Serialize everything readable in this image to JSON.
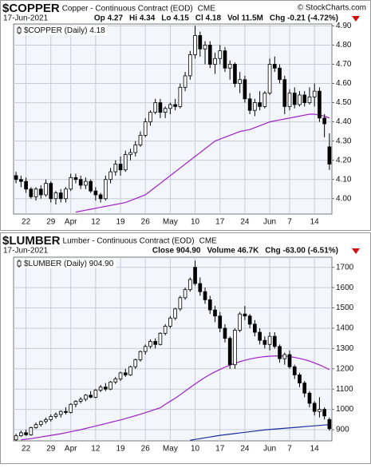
{
  "chart_data": [
    {
      "type": "candlestick",
      "title": "$COPPER",
      "subtitle": "Copper - Continuous Contract (EOD)",
      "exchange": "CME",
      "source": "© StockCharts.com",
      "date": "17-Jun-2021",
      "stats": [
        "Op 4.27",
        "Hi 4.34",
        "Lo 4.15",
        "Cl 4.18",
        "Vol 11.5M",
        "Chg -0.21 (-4.72%)"
      ],
      "legend_label": "$COPPER (Daily) 4.18",
      "categories": [
        null,
        null,
        "22",
        null,
        null,
        null,
        null,
        "29",
        null,
        null,
        null,
        "Apr",
        null,
        null,
        null,
        null,
        "12",
        null,
        null,
        null,
        null,
        "19",
        null,
        null,
        null,
        null,
        "26",
        null,
        null,
        null,
        null,
        "May",
        null,
        null,
        null,
        null,
        "10",
        null,
        null,
        null,
        null,
        "17",
        null,
        null,
        null,
        null,
        "24",
        null,
        null,
        null,
        null,
        "Jun",
        null,
        null,
        null,
        "7",
        null,
        null,
        null,
        null,
        "14",
        null,
        null,
        null
      ],
      "open": [
        4.12,
        4.1,
        4.09,
        4.05,
        4.01,
        4.05,
        4.02,
        4.08,
        4.0,
        4.03,
        4.0,
        4.05,
        4.11,
        4.1,
        4.07,
        4.09,
        4.04,
        4.02,
        4.0,
        4.1,
        4.14,
        4.18,
        4.15,
        4.23,
        4.24,
        4.28,
        4.33,
        4.4,
        4.45,
        4.5,
        4.45,
        4.47,
        4.49,
        4.48,
        4.58,
        4.64,
        4.75,
        4.85,
        4.78,
        4.8,
        4.7,
        4.73,
        4.77,
        4.68,
        4.7,
        4.6,
        4.62,
        4.52,
        4.46,
        4.5,
        4.48,
        4.55,
        4.7,
        4.68,
        4.62,
        4.48,
        4.55,
        4.49,
        4.54,
        4.5,
        4.53,
        4.56,
        4.42,
        4.27
      ],
      "high": [
        4.14,
        4.12,
        4.11,
        4.06,
        4.06,
        4.07,
        4.1,
        4.09,
        4.04,
        4.05,
        4.06,
        4.13,
        4.13,
        4.12,
        4.11,
        4.1,
        4.06,
        4.03,
        4.12,
        4.16,
        4.2,
        4.22,
        4.25,
        4.26,
        4.3,
        4.35,
        4.42,
        4.46,
        4.52,
        4.52,
        4.48,
        4.5,
        4.52,
        4.6,
        4.66,
        4.77,
        4.9,
        4.87,
        4.82,
        4.82,
        4.76,
        4.8,
        4.79,
        4.72,
        4.71,
        4.66,
        4.64,
        4.55,
        4.52,
        4.56,
        4.56,
        4.73,
        4.74,
        4.7,
        4.64,
        4.57,
        4.58,
        4.56,
        4.56,
        4.58,
        4.6,
        4.58,
        4.44,
        4.34
      ],
      "low": [
        4.08,
        4.06,
        4.03,
        4.0,
        3.99,
        4.0,
        4.01,
        3.98,
        3.97,
        3.98,
        3.98,
        4.04,
        4.08,
        4.05,
        4.05,
        4.03,
        3.99,
        3.98,
        3.99,
        4.08,
        4.12,
        4.12,
        4.14,
        4.2,
        4.22,
        4.27,
        4.32,
        4.38,
        4.44,
        4.42,
        4.42,
        4.44,
        4.46,
        4.47,
        4.56,
        4.62,
        4.73,
        4.74,
        4.7,
        4.68,
        4.65,
        4.7,
        4.66,
        4.62,
        4.58,
        4.55,
        4.5,
        4.44,
        4.43,
        4.46,
        4.47,
        4.54,
        4.66,
        4.6,
        4.44,
        4.46,
        4.47,
        4.48,
        4.48,
        4.49,
        4.48,
        4.4,
        4.32,
        4.15
      ],
      "close": [
        4.1,
        4.09,
        4.05,
        4.01,
        4.05,
        4.02,
        4.08,
        4.0,
        4.03,
        4.0,
        4.05,
        4.11,
        4.1,
        4.07,
        4.09,
        4.04,
        4.02,
        4.0,
        4.1,
        4.14,
        4.18,
        4.15,
        4.23,
        4.24,
        4.28,
        4.33,
        4.4,
        4.45,
        4.5,
        4.45,
        4.47,
        4.49,
        4.48,
        4.58,
        4.64,
        4.75,
        4.85,
        4.78,
        4.8,
        4.7,
        4.73,
        4.77,
        4.68,
        4.7,
        4.6,
        4.62,
        4.52,
        4.46,
        4.5,
        4.48,
        4.55,
        4.7,
        4.68,
        4.62,
        4.48,
        4.55,
        4.49,
        4.54,
        4.5,
        4.53,
        4.56,
        4.42,
        4.39,
        4.18
      ],
      "moving_averages": [
        {
          "color": "#a020c8",
          "values": [
            null,
            null,
            null,
            null,
            null,
            null,
            null,
            null,
            null,
            null,
            null,
            null,
            3.93,
            3.935,
            3.94,
            3.945,
            3.95,
            3.955,
            3.96,
            3.965,
            3.97,
            3.975,
            3.98,
            3.99,
            4.0,
            4.01,
            4.02,
            4.04,
            4.06,
            4.08,
            4.1,
            4.12,
            4.14,
            4.16,
            4.18,
            4.2,
            4.22,
            4.24,
            4.26,
            4.28,
            4.3,
            4.31,
            4.32,
            4.33,
            4.34,
            4.35,
            4.355,
            4.36,
            4.37,
            4.38,
            4.39,
            4.4,
            4.405,
            4.41,
            4.415,
            4.42,
            4.425,
            4.43,
            4.435,
            4.44,
            4.44,
            4.435,
            4.43,
            4.42
          ]
        }
      ],
      "ylim": [
        3.92,
        4.91
      ],
      "yticks": [
        {
          "value": 4.0,
          "label": "4.00"
        },
        {
          "value": 4.1,
          "label": "4.10"
        },
        {
          "value": 4.2,
          "label": "4.20"
        },
        {
          "value": 4.3,
          "label": "4.30"
        },
        {
          "value": 4.4,
          "label": "4.40"
        },
        {
          "value": 4.5,
          "label": "4.50"
        },
        {
          "value": 4.6,
          "label": "4.60"
        },
        {
          "value": 4.7,
          "label": "4.70"
        },
        {
          "value": 4.8,
          "label": "4.80"
        },
        {
          "value": 4.9,
          "label": "4.90"
        }
      ],
      "grid": true
    },
    {
      "type": "candlestick",
      "title": "$LUMBER",
      "subtitle": "Lumber - Continuous Contract (EOD)",
      "exchange": "CME",
      "date": "17-Jun-2021",
      "stats": [
        "Close 904.90",
        "Volume 46.7K",
        "Chg -63.00 (-6.51%)"
      ],
      "legend_label": "$LUMBER (Daily) 904.90",
      "categories": [
        null,
        null,
        "22",
        null,
        null,
        null,
        null,
        "29",
        null,
        null,
        null,
        "Apr",
        null,
        null,
        null,
        null,
        "12",
        null,
        null,
        null,
        null,
        "19",
        null,
        null,
        null,
        null,
        "26",
        null,
        null,
        null,
        null,
        "May",
        null,
        null,
        null,
        null,
        "10",
        null,
        null,
        null,
        null,
        "17",
        null,
        null,
        null,
        null,
        "24",
        null,
        null,
        null,
        null,
        "Jun",
        null,
        null,
        null,
        "7",
        null,
        null,
        null,
        null,
        "14",
        null,
        null,
        null
      ],
      "open": [
        850,
        870,
        885,
        875,
        910,
        925,
        940,
        950,
        965,
        975,
        990,
        985,
        1025,
        1040,
        1050,
        1070,
        1060,
        1095,
        1110,
        1100,
        1135,
        1150,
        1180,
        1170,
        1210,
        1245,
        1285,
        1310,
        1335,
        1320,
        1375,
        1410,
        1450,
        1495,
        1550,
        1590,
        1700,
        1620,
        1580,
        1540,
        1490,
        1460,
        1400,
        1350,
        1220,
        1390,
        1470,
        1460,
        1420,
        1380,
        1340,
        1320,
        1360,
        1310,
        1250,
        1270,
        1210,
        1170,
        1130,
        1080,
        1030,
        990,
        1000,
        950
      ],
      "high": [
        880,
        895,
        900,
        915,
        935,
        945,
        960,
        975,
        985,
        995,
        1010,
        1030,
        1045,
        1060,
        1075,
        1090,
        1100,
        1120,
        1130,
        1140,
        1160,
        1185,
        1200,
        1215,
        1250,
        1290,
        1320,
        1345,
        1350,
        1380,
        1420,
        1460,
        1500,
        1560,
        1600,
        1650,
        1733,
        1650,
        1600,
        1560,
        1510,
        1480,
        1420,
        1360,
        1400,
        1480,
        1510,
        1470,
        1440,
        1400,
        1360,
        1380,
        1380,
        1320,
        1280,
        1290,
        1220,
        1180,
        1140,
        1090,
        1040,
        1060,
        1010,
        960
      ],
      "low": [
        845,
        865,
        870,
        870,
        905,
        915,
        930,
        940,
        955,
        960,
        975,
        980,
        1010,
        1030,
        1040,
        1055,
        1055,
        1085,
        1090,
        1095,
        1125,
        1140,
        1160,
        1165,
        1200,
        1235,
        1270,
        1300,
        1300,
        1315,
        1365,
        1400,
        1440,
        1485,
        1540,
        1580,
        1610,
        1560,
        1520,
        1470,
        1430,
        1380,
        1330,
        1200,
        1200,
        1380,
        1440,
        1400,
        1360,
        1320,
        1300,
        1290,
        1300,
        1230,
        1220,
        1200,
        1150,
        1110,
        1060,
        1010,
        970,
        960,
        950,
        895
      ],
      "close": [
        870,
        885,
        875,
        910,
        925,
        940,
        950,
        965,
        975,
        990,
        985,
        1025,
        1040,
        1050,
        1070,
        1060,
        1095,
        1110,
        1100,
        1135,
        1150,
        1180,
        1170,
        1210,
        1245,
        1285,
        1310,
        1335,
        1320,
        1375,
        1410,
        1450,
        1495,
        1550,
        1590,
        1640,
        1620,
        1580,
        1540,
        1490,
        1460,
        1400,
        1350,
        1220,
        1390,
        1470,
        1460,
        1420,
        1380,
        1340,
        1320,
        1360,
        1310,
        1250,
        1270,
        1210,
        1170,
        1130,
        1080,
        1030,
        990,
        1000,
        967.9,
        904.9
      ],
      "moving_averages": [
        {
          "color": "#a020c8",
          "values": [
            null,
            850,
            853,
            856,
            860,
            864,
            868,
            872,
            876,
            880,
            885,
            890,
            895,
            900,
            906,
            912,
            918,
            924,
            930,
            936,
            942,
            948,
            955,
            962,
            969,
            976,
            984,
            992,
            1000,
            1008,
            1025,
            1040,
            1055,
            1072,
            1090,
            1108,
            1125,
            1142,
            1158,
            1172,
            1185,
            1197,
            1208,
            1218,
            1227,
            1235,
            1242,
            1248,
            1253,
            1257,
            1260,
            1262,
            1263,
            1263,
            1262,
            1260,
            1256,
            1251,
            1245,
            1238,
            1229,
            1219,
            1208,
            1196
          ]
        },
        {
          "color": "#1a2ea0",
          "values": [
            null,
            null,
            null,
            null,
            null,
            null,
            null,
            null,
            null,
            null,
            null,
            null,
            null,
            null,
            null,
            null,
            null,
            null,
            null,
            null,
            null,
            null,
            null,
            null,
            null,
            null,
            null,
            null,
            null,
            null,
            null,
            null,
            null,
            null,
            null,
            848,
            852,
            856,
            860,
            864,
            868,
            872,
            875,
            878,
            881,
            884,
            887,
            890,
            893,
            896,
            899,
            901,
            903,
            905,
            907,
            909,
            911,
            913,
            915,
            917,
            919,
            921,
            923,
            925
          ]
        }
      ],
      "ylim": [
        845,
        1750
      ],
      "yticks": [
        900,
        1000,
        1100,
        1200,
        1300,
        1400,
        1500,
        1600,
        1700
      ],
      "grid": true
    }
  ]
}
